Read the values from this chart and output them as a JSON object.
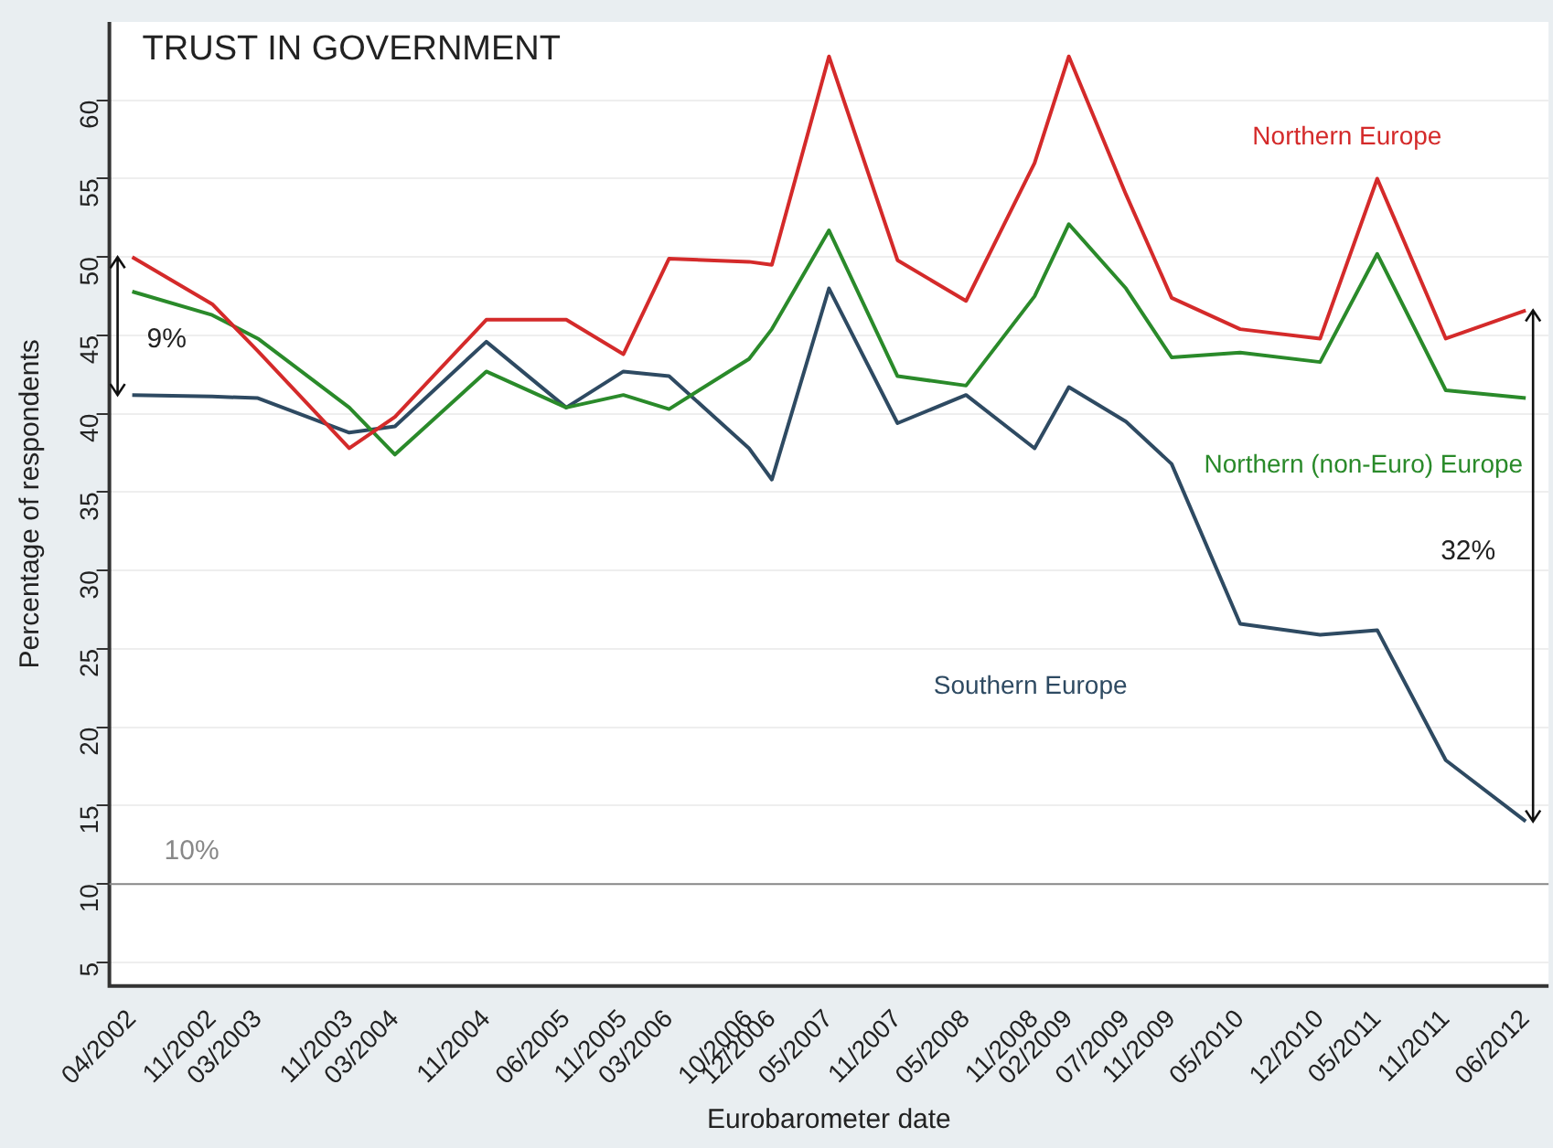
{
  "chart_data": {
    "type": "line",
    "title": "TRUST IN GOVERNMENT",
    "xlabel": "Eurobarometer date",
    "ylabel": "Percentage of respondents",
    "x": [
      "2002-04",
      "2002-11",
      "2003-03",
      "2003-11",
      "2004-03",
      "2004-11",
      "2005-06",
      "2005-11",
      "2006-03",
      "2006-10",
      "2006-12",
      "2007-05",
      "2007-11",
      "2008-05",
      "2008-11",
      "2009-02",
      "2009-07",
      "2009-11",
      "2010-05",
      "2010-12",
      "2011-05",
      "2011-11",
      "2012-06"
    ],
    "series": [
      {
        "name": "Northern Europe",
        "color": "#d42a2a",
        "values": [
          50.0,
          47.0,
          44.0,
          37.8,
          39.8,
          46.0,
          46.0,
          43.8,
          49.9,
          49.7,
          49.5,
          62.8,
          49.8,
          47.2,
          56.0,
          62.8,
          54.0,
          47.4,
          45.4,
          44.8,
          55.0,
          44.8,
          46.6
        ]
      },
      {
        "name": "Northern (non-Euro) Europe",
        "color": "#2a8a2a",
        "values": [
          47.8,
          46.3,
          44.8,
          40.4,
          37.4,
          42.7,
          40.4,
          41.2,
          40.3,
          43.5,
          45.4,
          51.7,
          42.4,
          41.8,
          47.5,
          52.1,
          48.0,
          43.6,
          43.9,
          43.3,
          50.2,
          41.5,
          41.0
        ]
      },
      {
        "name": "Southern Europe",
        "color": "#2e4a62",
        "values": [
          41.2,
          41.1,
          41.0,
          38.8,
          39.2,
          44.6,
          40.4,
          42.7,
          42.4,
          37.8,
          35.8,
          48.0,
          39.4,
          41.2,
          37.8,
          41.7,
          39.5,
          36.8,
          26.6,
          25.9,
          26.2,
          17.9,
          14.0
        ]
      }
    ],
    "xlim": [
      "2002-02",
      "2012-08"
    ],
    "xticks": [
      {
        "value": "2002-04",
        "label": "04/2002"
      },
      {
        "value": "2002-11",
        "label": "11/2002"
      },
      {
        "value": "2003-03",
        "label": "03/2003"
      },
      {
        "value": "2003-11",
        "label": "11/2003"
      },
      {
        "value": "2004-03",
        "label": "03/2004"
      },
      {
        "value": "2004-11",
        "label": "11/2004"
      },
      {
        "value": "2005-06",
        "label": "06/2005"
      },
      {
        "value": "2005-11",
        "label": "11/2005"
      },
      {
        "value": "2006-03",
        "label": "03/2006"
      },
      {
        "value": "2006-10",
        "label": "10/2006"
      },
      {
        "value": "2006-12",
        "label": "12/2006"
      },
      {
        "value": "2007-05",
        "label": "05/2007"
      },
      {
        "value": "2007-11",
        "label": "11/2007"
      },
      {
        "value": "2008-05",
        "label": "05/2008"
      },
      {
        "value": "2008-11",
        "label": "11/2008"
      },
      {
        "value": "2009-02",
        "label": "02/2009"
      },
      {
        "value": "2009-07",
        "label": "07/2009"
      },
      {
        "value": "2009-11",
        "label": "11/2009"
      },
      {
        "value": "2010-05",
        "label": "05/2010"
      },
      {
        "value": "2010-12",
        "label": "12/2010"
      },
      {
        "value": "2011-05",
        "label": "05/2011"
      },
      {
        "value": "2011-11",
        "label": "11/2011"
      },
      {
        "value": "2012-06",
        "label": "06/2012"
      }
    ],
    "ylim": [
      3.5,
      65
    ],
    "yticks": [
      5,
      10,
      15,
      20,
      25,
      30,
      35,
      40,
      45,
      50,
      55,
      60
    ],
    "ref_lines": [
      {
        "axis": "y",
        "value": 10,
        "label": "10%",
        "color": "#888888"
      }
    ],
    "annotations": [
      "9%",
      "32%"
    ],
    "grid": "y",
    "legend": false,
    "marker": "none",
    "line_style": "solid"
  }
}
